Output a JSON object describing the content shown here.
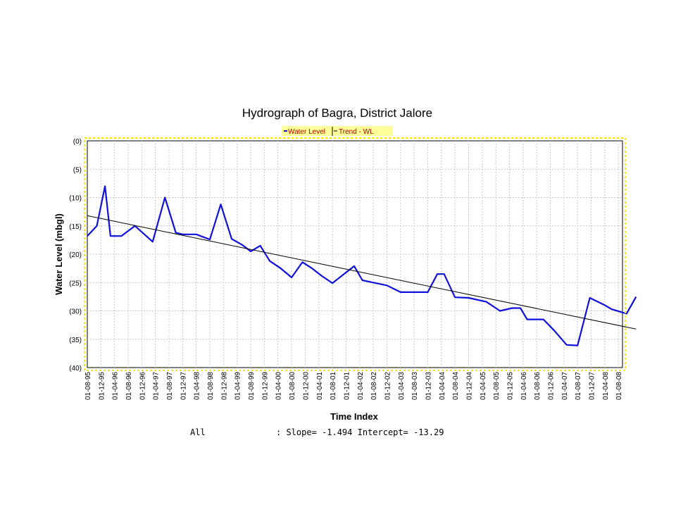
{
  "chart_data": {
    "type": "line",
    "title": "Hydrograph of Bagra, District Jalore",
    "xlabel": "Time Index",
    "ylabel": "Water Level (mbgl)",
    "ylim": [
      0,
      40
    ],
    "y_inverted": true,
    "y_tick_labels": [
      "(0)",
      "(5)",
      "(10)",
      "(15)",
      "(20)",
      "(25)",
      "(30)",
      "(35)",
      "(40)"
    ],
    "y_tick_values": [
      0,
      5,
      10,
      15,
      20,
      25,
      30,
      35,
      40
    ],
    "grid": true,
    "legend_position": "top-center",
    "legend": [
      {
        "label": "Water Level",
        "color": "#1010dd"
      },
      {
        "label": "Trend - WL",
        "color": "#000000"
      }
    ],
    "categories": [
      "01-08-95",
      "01-12-95",
      "01-04-96",
      "01-08-96",
      "01-12-96",
      "01-04-97",
      "01-08-97",
      "01-12-97",
      "01-04-98",
      "01-08-98",
      "01-12-98",
      "01-04-99",
      "01-08-99",
      "01-12-99",
      "01-04-00",
      "01-08-00",
      "01-12-00",
      "01-04-01",
      "01-08-01",
      "01-12-01",
      "01-04-02",
      "01-08-02",
      "01-12-02",
      "01-04-03",
      "01-08-03",
      "01-12-03",
      "01-04-04",
      "01-08-04",
      "01-12-04",
      "01-04-05",
      "01-08-05",
      "01-12-05",
      "01-04-06",
      "01-08-06",
      "01-12-06",
      "01-04-07",
      "01-08-07",
      "01-12-07",
      "01-04-08",
      "01-08-08"
    ],
    "series": [
      {
        "name": "Water Level",
        "color": "#1010dd",
        "points": [
          [
            0,
            16.8
          ],
          [
            0.7,
            15
          ],
          [
            1.3,
            8
          ],
          [
            1.7,
            16.8
          ],
          [
            2.5,
            16.8
          ],
          [
            3.5,
            15
          ],
          [
            4.8,
            17.8
          ],
          [
            5.7,
            10
          ],
          [
            6.5,
            16.2
          ],
          [
            7,
            16.5
          ],
          [
            8,
            16.5
          ],
          [
            9,
            17.4
          ],
          [
            9.8,
            11.2
          ],
          [
            10.6,
            17.3
          ],
          [
            11.4,
            18.4
          ],
          [
            12,
            19.5
          ],
          [
            12.7,
            18.5
          ],
          [
            13.4,
            21.2
          ],
          [
            14.2,
            22.5
          ],
          [
            15,
            24.1
          ],
          [
            15.8,
            21.4
          ],
          [
            16.5,
            22.5
          ],
          [
            17.2,
            23.8
          ],
          [
            18,
            25.1
          ],
          [
            18.9,
            23.4
          ],
          [
            19.6,
            22.1
          ],
          [
            20.2,
            24.6
          ],
          [
            21,
            25
          ],
          [
            22,
            25.5
          ],
          [
            23,
            26.7
          ],
          [
            24,
            26.7
          ],
          [
            25,
            26.7
          ],
          [
            25.7,
            23.5
          ],
          [
            26.2,
            23.5
          ],
          [
            27,
            27.6
          ],
          [
            28,
            27.7
          ],
          [
            29.3,
            28.4
          ],
          [
            30.3,
            30
          ],
          [
            31.2,
            29.5
          ],
          [
            31.8,
            29.5
          ],
          [
            32.3,
            31.5
          ],
          [
            33.5,
            31.5
          ],
          [
            34.3,
            33.5
          ],
          [
            35.2,
            36
          ],
          [
            36,
            36.1
          ],
          [
            36.9,
            27.7
          ],
          [
            38,
            29
          ],
          [
            38.5,
            29.7
          ],
          [
            39.6,
            30.5
          ],
          [
            40.3,
            27.5
          ]
        ]
      },
      {
        "name": "Trend - WL",
        "color": "#000000",
        "points": [
          [
            0,
            13.2
          ],
          [
            40.3,
            33.2
          ]
        ]
      }
    ],
    "annotations": {
      "series_label": "All",
      "stats": ": Slope= -1.494  Intercept= -13.29"
    }
  }
}
